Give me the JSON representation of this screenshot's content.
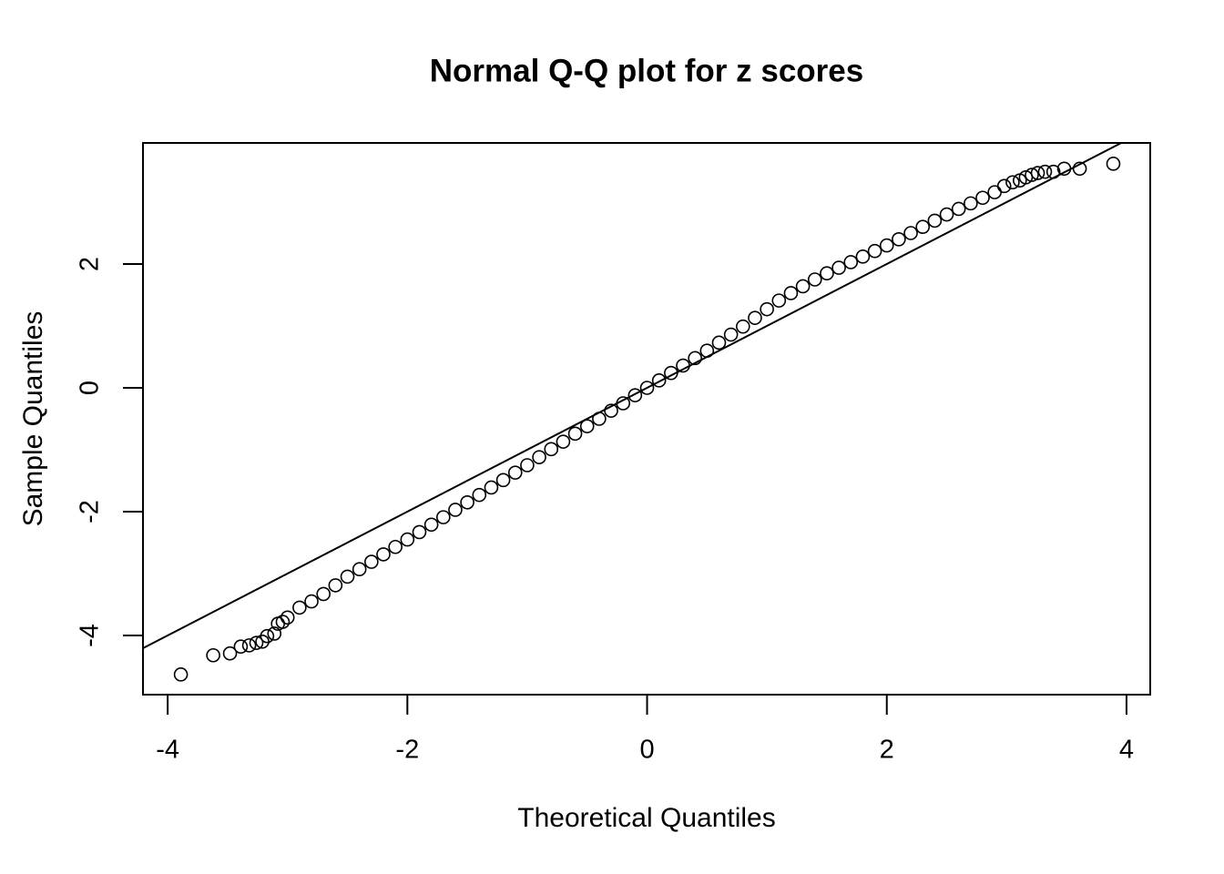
{
  "chart_data": {
    "type": "scatter",
    "title": "Normal Q-Q plot for z scores",
    "xlabel": "Theoretical Quantiles",
    "ylabel": "Sample Quantiles",
    "xlim": [
      -4.206,
      4.198
    ],
    "ylim": [
      -4.956,
      3.956
    ],
    "xticks": [
      -4,
      -2,
      0,
      2,
      4
    ],
    "yticks": [
      -4,
      -2,
      0,
      2
    ],
    "color": "#000000",
    "reference_line": {
      "intercept": 0,
      "slope": 1
    },
    "x": [
      -3.89,
      -3.62,
      -3.48,
      -3.39,
      -3.32,
      -3.26,
      -3.21,
      -3.17,
      -3.11,
      -3.08,
      -3.04,
      -3.0,
      -2.9,
      -2.8,
      -2.7,
      -2.6,
      -2.5,
      -2.4,
      -2.3,
      -2.2,
      -2.1,
      -2.0,
      -1.9,
      -1.8,
      -1.7,
      -1.6,
      -1.5,
      -1.4,
      -1.3,
      -1.2,
      -1.1,
      -1.0,
      -0.9,
      -0.8,
      -0.7,
      -0.6,
      -0.5,
      -0.4,
      -0.3,
      -0.2,
      -0.1,
      0,
      0.1,
      0.2,
      0.3,
      0.4,
      0.5,
      0.6,
      0.7,
      0.8,
      0.9,
      1.0,
      1.1,
      1.2,
      1.3,
      1.4,
      1.5,
      1.6,
      1.7,
      1.8,
      1.9,
      2.0,
      2.1,
      2.2,
      2.3,
      2.4,
      2.5,
      2.6,
      2.7,
      2.8,
      2.9,
      2.98,
      3.05,
      3.11,
      3.16,
      3.21,
      3.26,
      3.32,
      3.39,
      3.48,
      3.61,
      3.89
    ],
    "values": [
      -4.63,
      -4.32,
      -4.29,
      -4.18,
      -4.16,
      -4.12,
      -4.1,
      -4.01,
      -3.97,
      -3.81,
      -3.78,
      -3.71,
      -3.55,
      -3.45,
      -3.33,
      -3.19,
      -3.05,
      -2.93,
      -2.81,
      -2.69,
      -2.57,
      -2.45,
      -2.33,
      -2.21,
      -2.09,
      -1.97,
      -1.85,
      -1.73,
      -1.61,
      -1.49,
      -1.37,
      -1.25,
      -1.12,
      -0.99,
      -0.87,
      -0.74,
      -0.62,
      -0.5,
      -0.37,
      -0.25,
      -0.12,
      0,
      0.12,
      0.24,
      0.36,
      0.48,
      0.6,
      0.73,
      0.86,
      0.99,
      1.13,
      1.27,
      1.41,
      1.53,
      1.64,
      1.75,
      1.85,
      1.94,
      2.03,
      2.12,
      2.21,
      2.3,
      2.4,
      2.5,
      2.6,
      2.7,
      2.8,
      2.89,
      2.98,
      3.07,
      3.16,
      3.26,
      3.32,
      3.35,
      3.4,
      3.44,
      3.47,
      3.49,
      3.49,
      3.54,
      3.54,
      3.62
    ]
  }
}
